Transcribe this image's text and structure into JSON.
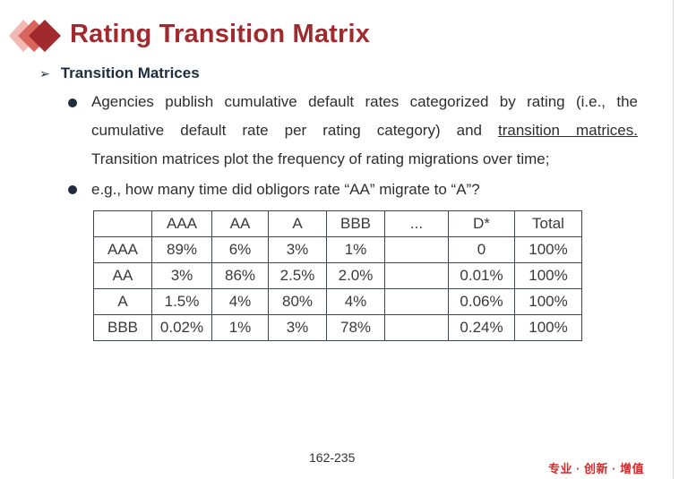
{
  "slide": {
    "title": "Rating Transition Matrix",
    "section_heading": "Transition Matrices",
    "bullet1": {
      "line1": "Agencies publish cumulative default rates categorized by rating (i.e., the",
      "line2_start": "cumulative default rate per rating category) and",
      "line2_link": "transition matrices.",
      "line3": "Transition matrices plot the frequency of rating migrations over time;"
    },
    "bullet2": "e.g., how many time did obligors rate “AA” migrate to “A”?",
    "table": {
      "headers": [
        "",
        "AAA",
        "AA",
        "A",
        "BBB",
        "...",
        "D*",
        "Total"
      ],
      "rows": [
        [
          "AAA",
          "89%",
          "6%",
          "3%",
          "1%",
          "",
          "0",
          "100%"
        ],
        [
          "AA",
          "3%",
          "86%",
          "2.5%",
          "2.0%",
          "",
          "0.01%",
          "100%"
        ],
        [
          "A",
          "1.5%",
          "4%",
          "80%",
          "4%",
          "",
          "0.06%",
          "100%"
        ],
        [
          "BBB",
          "0.02%",
          "1%",
          "3%",
          "78%",
          "",
          "0.24%",
          "100%"
        ]
      ]
    },
    "page_number": "162-235",
    "slogan": "专业 · 创新 · 增值"
  },
  "colors": {
    "title": "#a02a2e",
    "logo_light": "#f2b8b2",
    "logo_mid": "#d8665e",
    "logo_dark": "#a02a2e",
    "bullet": "#1f2d3d",
    "slogan": "#d32c2c"
  }
}
